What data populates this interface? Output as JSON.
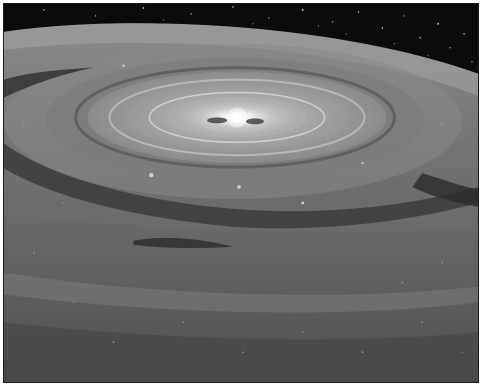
{
  "image": {
    "subject": "protoplanetary-disk-illustration",
    "palette": {
      "space": "#0b0b0b",
      "disk_outer": "#7a7a7a",
      "disk_mid": "#8e8e8e",
      "disk_inner": "#b8b8b8",
      "core": "#ffffff",
      "dust_lane": "#3a3a3a",
      "border": "#1a1a1a"
    }
  }
}
